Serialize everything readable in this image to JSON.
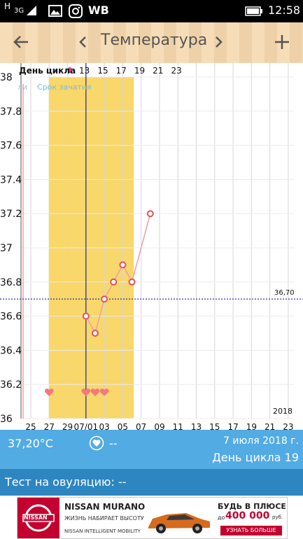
{
  "status_bar": {
    "carrier": "H",
    "network": "3G",
    "app_label": "WB",
    "time": "12:58"
  },
  "toolbar": {
    "back_icon": "arrow-left-icon",
    "prev_icon": "chevron-left-icon",
    "title": "Температура",
    "next_icon": "chevron-right-icon",
    "add_icon": "plus-icon"
  },
  "chart": {
    "header_label": "День цикла",
    "fertile_label": "Срок зачатия",
    "fertile_prefix": "ли",
    "coverline_label": "36,70",
    "year_label": "2018"
  },
  "chart_data": {
    "type": "line",
    "ylim": [
      36.0,
      38.0
    ],
    "yticks": [
      "36",
      "36.2",
      "36.4",
      "36.6",
      "36.8",
      "37",
      "37.2",
      "37.4",
      "37.6",
      "37.8",
      "38"
    ],
    "top_ticks": [
      "13",
      "15",
      "17",
      "19",
      "21",
      "23"
    ],
    "bottom_ticks": [
      "25",
      "27",
      "29",
      "07/01",
      "03",
      "05",
      "07",
      "09",
      "11",
      "13",
      "15",
      "17",
      "19",
      "21",
      "23"
    ],
    "coverline": 36.7,
    "series": [
      {
        "x": [
          2,
          3,
          4,
          5,
          6,
          7,
          9
        ],
        "values": [
          36.6,
          36.5,
          36.7,
          36.8,
          36.9,
          36.8,
          37.2
        ]
      }
    ],
    "heart_days": [
      27,
      2,
      3,
      4
    ],
    "fertile_window": [
      27,
      7
    ],
    "today_day": 2
  },
  "colors": {
    "fertile": "#f8d76b",
    "line": "#f19ca3",
    "marker": "#e0505b",
    "coverline": "#1a1aa0",
    "today_line": "#2a2a7a",
    "heart": "#f2797f",
    "info_bg": "#52abe3",
    "ovu_bg": "#2e86c1"
  },
  "info": {
    "temperature": "37,20°C",
    "heart_icon": "heart-circle-icon",
    "heart_value": "--",
    "date": "7 июля 2018 г.",
    "cycle_day": "День цикла 19"
  },
  "ovulation": {
    "label": "Тест на овуляцию: --"
  },
  "ad": {
    "brand": "NISSAN",
    "model": "NISSAN MURANO",
    "slogan": "ЖИЗНЬ НАБИРАЕТ ВЫСОТУ",
    "offer_title": "БУДЬ В ПЛЮСЕ",
    "offer_prefix": "до",
    "offer_amount": "400 000",
    "offer_unit": "руб.",
    "cta": "УЗНАТЬ БОЛЬШЕ",
    "footer": "NISSAN INTELLIGENT MOBILITY"
  }
}
